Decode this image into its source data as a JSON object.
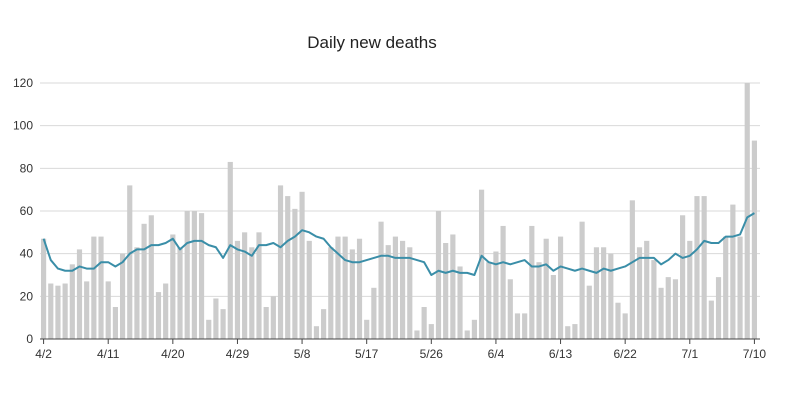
{
  "chart_data": {
    "type": "bar",
    "title": "Daily new deaths",
    "xlabel": "",
    "ylabel": "",
    "ylim": [
      0,
      120
    ],
    "y_ticks": [
      0,
      20,
      40,
      60,
      80,
      100,
      120
    ],
    "grid": true,
    "bar_color": "#cccccc",
    "line_color": "#3a8ea8",
    "categories": [
      "4/2",
      "4/3",
      "4/4",
      "4/5",
      "4/6",
      "4/7",
      "4/8",
      "4/9",
      "4/10",
      "4/11",
      "4/12",
      "4/13",
      "4/14",
      "4/15",
      "4/16",
      "4/17",
      "4/18",
      "4/19",
      "4/20",
      "4/21",
      "4/22",
      "4/23",
      "4/24",
      "4/25",
      "4/26",
      "4/27",
      "4/28",
      "4/29",
      "4/30",
      "5/1",
      "5/2",
      "5/3",
      "5/4",
      "5/5",
      "5/6",
      "5/7",
      "5/8",
      "5/9",
      "5/10",
      "5/11",
      "5/12",
      "5/13",
      "5/14",
      "5/15",
      "5/16",
      "5/17",
      "5/18",
      "5/19",
      "5/20",
      "5/21",
      "5/22",
      "5/23",
      "5/24",
      "5/25",
      "5/26",
      "5/27",
      "5/28",
      "5/29",
      "5/30",
      "5/31",
      "6/1",
      "6/2",
      "6/3",
      "6/4",
      "6/5",
      "6/6",
      "6/7",
      "6/8",
      "6/9",
      "6/10",
      "6/11",
      "6/12",
      "6/13",
      "6/14",
      "6/15",
      "6/16",
      "6/17",
      "6/18",
      "6/19",
      "6/20",
      "6/21",
      "6/22",
      "6/23",
      "6/24",
      "6/25",
      "6/26",
      "6/27",
      "6/28",
      "6/29",
      "6/30",
      "7/1",
      "7/2",
      "7/3",
      "7/4",
      "7/5",
      "7/6",
      "7/7",
      "7/8",
      "7/9",
      "7/10"
    ],
    "x_tick_labels": [
      "4/2",
      "4/11",
      "4/20",
      "4/29",
      "5/8",
      "5/17",
      "5/26",
      "6/4",
      "6/13",
      "6/22",
      "7/1",
      "7/10"
    ],
    "series": [
      {
        "type": "bar",
        "values": [
          47,
          26,
          25,
          26,
          35,
          42,
          27,
          48,
          48,
          27,
          15,
          40,
          72,
          43,
          54,
          58,
          22,
          26,
          49,
          43,
          60,
          60,
          59,
          9,
          19,
          14,
          83,
          46,
          50,
          43,
          50,
          15,
          20,
          72,
          67,
          61,
          69,
          46,
          6,
          14,
          43,
          48,
          48,
          42,
          47,
          9,
          24,
          55,
          44,
          48,
          46,
          43,
          4,
          15,
          7,
          60,
          45,
          49,
          34,
          4,
          9,
          70,
          36,
          41,
          53,
          28,
          12,
          12,
          53,
          36,
          47,
          30,
          48,
          6,
          7,
          55,
          25,
          43,
          43,
          40,
          17,
          12,
          65,
          43,
          46,
          37,
          24,
          29,
          28,
          58,
          46,
          67,
          67,
          18,
          29,
          48,
          63,
          48,
          120,
          93
        ]
      },
      {
        "type": "line",
        "values": [
          47,
          37,
          33,
          32,
          32,
          34,
          33,
          33,
          36,
          36,
          34,
          36,
          40,
          42,
          42,
          44,
          44,
          45,
          47,
          42,
          45,
          46,
          46,
          44,
          43,
          38,
          44,
          42,
          41,
          39,
          44,
          44,
          45,
          43,
          46,
          48,
          51,
          50,
          48,
          47,
          43,
          40,
          37,
          36,
          36,
          37,
          38,
          39,
          39,
          38,
          38,
          38,
          37,
          36,
          30,
          32,
          31,
          32,
          31,
          31,
          30,
          39,
          36,
          35,
          36,
          35,
          36,
          37,
          34,
          34,
          35,
          32,
          34,
          33,
          32,
          33,
          32,
          31,
          33,
          32,
          33,
          34,
          36,
          38,
          38,
          38,
          35,
          37,
          40,
          38,
          39,
          42,
          46,
          45,
          45,
          48,
          48,
          49,
          57,
          59
        ]
      }
    ]
  }
}
